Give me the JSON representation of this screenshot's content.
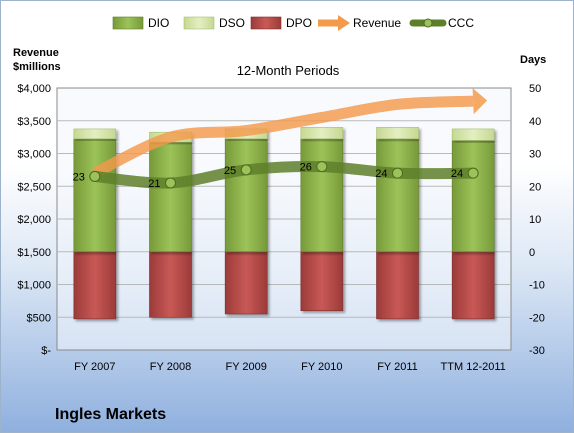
{
  "company": "Ingles Markets",
  "chart_data": {
    "type": "bar",
    "title": "12-Month Periods",
    "left_axis_label": [
      "Revenue",
      "$millions"
    ],
    "right_axis_label": "Days",
    "categories": [
      "FY 2007",
      "FY 2008",
      "FY 2009",
      "FY 2010",
      "FY 2011",
      "TTM 12-2011"
    ],
    "left_ylim": [
      0,
      4000
    ],
    "left_ticks": [
      "$-",
      "$500",
      "$1,000",
      "$1,500",
      "$2,000",
      "$2,500",
      "$3,000",
      "$3,500",
      "$4,000"
    ],
    "right_ylim": [
      -30,
      50
    ],
    "right_ticks": [
      "-30",
      "-20",
      "-10",
      "0",
      "10",
      "20",
      "30",
      "40",
      "50"
    ],
    "legend_position": "top",
    "series": [
      {
        "name": "DIO",
        "axis": "right",
        "kind": "stacked-bar",
        "color": "#8bb14a",
        "values": [
          34.5,
          33.5,
          34.5,
          34.5,
          34.5,
          34
        ]
      },
      {
        "name": "DSO",
        "axis": "right",
        "kind": "stacked-bar",
        "color": "#d6e5a8",
        "values": [
          3,
          3,
          3,
          3.5,
          3.5,
          3.5
        ]
      },
      {
        "name": "DPO",
        "axis": "right",
        "kind": "negative-bar",
        "color": "#b94a48",
        "values": [
          -20.5,
          -20,
          -19,
          -18,
          -20.5,
          -20.5
        ]
      },
      {
        "name": "Revenue",
        "axis": "left",
        "kind": "line",
        "color": "#f39a4c",
        "values": [
          2700,
          3250,
          3350,
          3550,
          3750,
          3800
        ]
      },
      {
        "name": "CCC",
        "axis": "right",
        "kind": "line",
        "color": "#5e7f2a",
        "values": [
          23,
          21,
          25,
          26,
          24,
          24
        ],
        "labels": [
          "23",
          "21",
          "25",
          "26",
          "24",
          "24"
        ]
      }
    ]
  }
}
